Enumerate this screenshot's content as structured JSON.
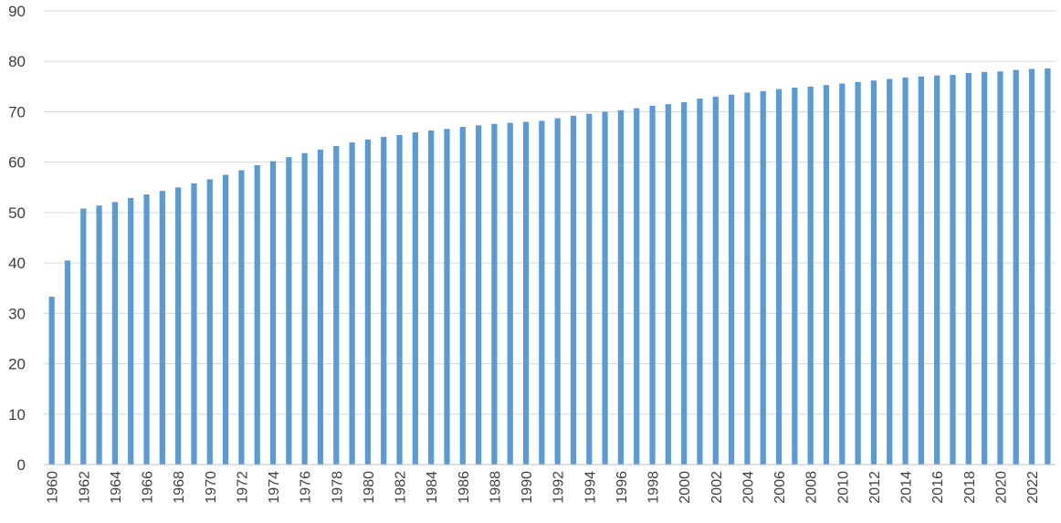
{
  "chart_data": {
    "type": "bar",
    "title": "",
    "xlabel": "",
    "ylabel": "",
    "ylim": [
      0,
      90
    ],
    "yticks": [
      0,
      10,
      20,
      30,
      40,
      50,
      60,
      70,
      80,
      90
    ],
    "grid": true,
    "bar_color": "#5b9bd5",
    "categories": [
      "1960",
      "1961",
      "1962",
      "1963",
      "1964",
      "1965",
      "1966",
      "1967",
      "1968",
      "1969",
      "1970",
      "1971",
      "1972",
      "1973",
      "1974",
      "1975",
      "1976",
      "1977",
      "1978",
      "1979",
      "1980",
      "1981",
      "1982",
      "1983",
      "1984",
      "1985",
      "1986",
      "1987",
      "1988",
      "1989",
      "1990",
      "1991",
      "1992",
      "1993",
      "1994",
      "1995",
      "1996",
      "1997",
      "1998",
      "1999",
      "2000",
      "2001",
      "2002",
      "2003",
      "2004",
      "2005",
      "2006",
      "2007",
      "2008",
      "2009",
      "2010",
      "2011",
      "2012",
      "2013",
      "2014",
      "2015",
      "2016",
      "2017",
      "2018",
      "2019",
      "2020",
      "2021",
      "2022",
      "2023"
    ],
    "x_tick_labels": [
      "1960",
      "1962",
      "1964",
      "1966",
      "1968",
      "1970",
      "1972",
      "1974",
      "1976",
      "1978",
      "1980",
      "1982",
      "1984",
      "1986",
      "1988",
      "1990",
      "1992",
      "1994",
      "1996",
      "1998",
      "2000",
      "2002",
      "2004",
      "2006",
      "2008",
      "2010",
      "2012",
      "2014",
      "2016",
      "2018",
      "2020",
      "2022"
    ],
    "values": [
      33.3,
      40.5,
      50.8,
      51.4,
      52.1,
      52.9,
      53.6,
      54.3,
      55.0,
      55.8,
      56.6,
      57.5,
      58.4,
      59.4,
      60.2,
      61.0,
      61.8,
      62.5,
      63.2,
      63.9,
      64.5,
      65.0,
      65.4,
      65.9,
      66.3,
      66.6,
      67.0,
      67.3,
      67.6,
      67.8,
      68.0,
      68.2,
      68.7,
      69.2,
      69.6,
      70.0,
      70.3,
      70.7,
      71.2,
      71.5,
      71.9,
      72.6,
      73.0,
      73.4,
      73.8,
      74.1,
      74.5,
      74.8,
      75.0,
      75.3,
      75.6,
      75.9,
      76.2,
      76.5,
      76.8,
      77.0,
      77.2,
      77.3,
      77.7,
      77.9,
      78.0,
      78.3,
      78.5,
      78.6
    ]
  }
}
